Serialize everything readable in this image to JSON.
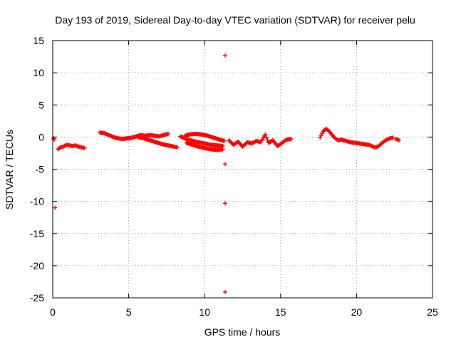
{
  "chart_data": {
    "type": "scatter",
    "title": "Day 193 of 2019, Sidereal Day-to-day VTEC variation (SDTVAR) for receiver pelu",
    "xlabel": "GPS time / hours",
    "ylabel": "SDTVAR / TECUs",
    "xlim": [
      0,
      25
    ],
    "ylim": [
      -25,
      15
    ],
    "xticks": [
      0,
      5,
      10,
      15,
      20,
      25
    ],
    "yticks": [
      15,
      10,
      5,
      0,
      -5,
      -10,
      -15,
      -20,
      -25
    ],
    "grid": true,
    "marker": "+",
    "color": "#ff0000",
    "segments": [
      [
        [
          0.05,
          -0.2
        ],
        [
          0.1,
          -0.4
        ]
      ],
      [
        [
          0.35,
          -1.9
        ],
        [
          0.5,
          -1.6
        ],
        [
          0.7,
          -1.5
        ],
        [
          0.9,
          -1.2
        ],
        [
          1.1,
          -1.3
        ],
        [
          1.3,
          -1.4
        ],
        [
          1.5,
          -1.3
        ],
        [
          1.7,
          -1.5
        ],
        [
          1.9,
          -1.6
        ],
        [
          2.1,
          -1.7
        ]
      ],
      [
        [
          3.1,
          0.7
        ],
        [
          3.4,
          0.6
        ],
        [
          3.7,
          0.3
        ],
        [
          4.0,
          0.0
        ],
        [
          4.3,
          -0.2
        ],
        [
          4.6,
          -0.3
        ],
        [
          4.9,
          -0.2
        ],
        [
          5.2,
          -0.1
        ],
        [
          5.5,
          0.1
        ],
        [
          5.8,
          0.3
        ],
        [
          6.1,
          0.2
        ],
        [
          6.4,
          0.3
        ],
        [
          6.7,
          0.2
        ],
        [
          7.0,
          0.1
        ],
        [
          7.3,
          0.3
        ],
        [
          7.6,
          0.5
        ]
      ],
      [
        [
          5.6,
          0.0
        ],
        [
          6.0,
          -0.2
        ],
        [
          6.4,
          -0.5
        ],
        [
          6.8,
          -0.8
        ],
        [
          7.2,
          -1.1
        ],
        [
          7.6,
          -1.3
        ],
        [
          8.0,
          -1.5
        ],
        [
          8.2,
          -1.6
        ]
      ],
      [
        [
          8.4,
          0.1
        ],
        [
          8.8,
          -0.3
        ],
        [
          9.2,
          -0.6
        ],
        [
          9.6,
          -0.8
        ],
        [
          10.0,
          -1.0
        ],
        [
          10.4,
          -1.2
        ],
        [
          10.8,
          -1.3
        ],
        [
          11.2,
          -1.4
        ]
      ],
      [
        [
          8.7,
          0.2
        ],
        [
          9.0,
          0.4
        ],
        [
          9.4,
          0.5
        ],
        [
          9.8,
          0.4
        ],
        [
          10.2,
          0.2
        ],
        [
          10.6,
          -0.1
        ],
        [
          11.0,
          -0.4
        ],
        [
          11.3,
          -0.6
        ]
      ],
      [
        [
          8.8,
          -0.9
        ],
        [
          9.2,
          -1.2
        ],
        [
          9.6,
          -1.5
        ],
        [
          10.0,
          -1.7
        ],
        [
          10.4,
          -1.9
        ],
        [
          10.8,
          -2.0
        ],
        [
          11.2,
          -1.9
        ]
      ],
      [
        [
          11.6,
          -0.5
        ],
        [
          11.9,
          -1.2
        ],
        [
          12.2,
          -0.7
        ],
        [
          12.5,
          -1.5
        ],
        [
          12.8,
          -0.8
        ],
        [
          13.1,
          -1.0
        ],
        [
          13.4,
          -0.6
        ],
        [
          13.7,
          -0.8
        ],
        [
          14.0,
          0.4
        ],
        [
          14.2,
          -0.9
        ],
        [
          14.5,
          -0.5
        ],
        [
          14.8,
          -1.4
        ],
        [
          15.1,
          -0.9
        ],
        [
          15.4,
          -0.4
        ],
        [
          15.7,
          -0.3
        ]
      ],
      [
        [
          17.6,
          -0.1
        ],
        [
          17.8,
          0.9
        ],
        [
          18.0,
          1.3
        ],
        [
          18.2,
          0.9
        ],
        [
          18.4,
          0.3
        ],
        [
          18.6,
          -0.2
        ],
        [
          18.8,
          -0.5
        ],
        [
          19.0,
          -0.4
        ],
        [
          19.3,
          -0.6
        ],
        [
          19.6,
          -0.8
        ],
        [
          19.9,
          -0.9
        ],
        [
          20.2,
          -1.0
        ],
        [
          20.5,
          -1.1
        ],
        [
          20.8,
          -1.2
        ],
        [
          21.0,
          -1.4
        ],
        [
          21.2,
          -1.6
        ],
        [
          21.4,
          -1.5
        ],
        [
          21.6,
          -1.1
        ],
        [
          21.8,
          -0.7
        ],
        [
          22.0,
          -0.4
        ],
        [
          22.2,
          -0.2
        ],
        [
          22.4,
          -0.1
        ]
      ],
      [
        [
          22.6,
          -0.3
        ],
        [
          22.8,
          -0.5
        ]
      ]
    ],
    "outliers": [
      [
        0.15,
        -11.0
      ],
      [
        11.35,
        12.7
      ],
      [
        11.35,
        -4.2
      ],
      [
        11.35,
        -10.3
      ],
      [
        11.35,
        -24.1
      ]
    ]
  }
}
